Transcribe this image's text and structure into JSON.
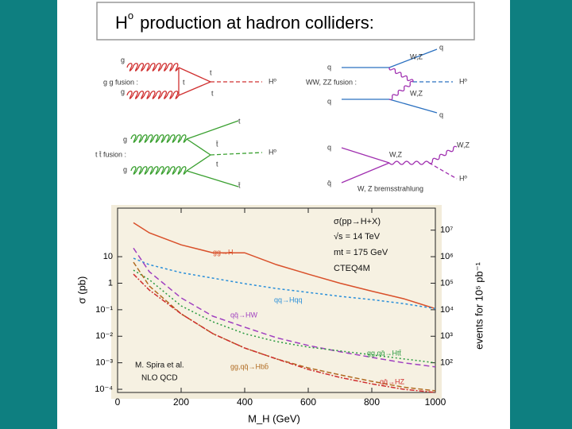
{
  "title_main": "H",
  "title_sup": "o",
  "title_rest": "production at hadron colliders:",
  "diagram_labels": [
    "g",
    "g",
    "g g fusion :",
    "t",
    "t",
    "t",
    "Hº",
    "q",
    "q",
    "q",
    "q",
    "W,Z",
    "W,Z",
    "Hº",
    "WW, ZZ fusion :",
    "g",
    "g",
    "t t̄ fusion :",
    "t",
    "t̄",
    "t",
    "t̄",
    "Hº",
    "q",
    "q̄",
    "W,Z",
    "W,Z",
    "Hº",
    "W, Z bremsstrahlung"
  ],
  "chart_data": {
    "type": "line",
    "log_scale": true,
    "x": [
      50,
      100,
      200,
      300,
      400,
      500,
      600,
      700,
      800,
      900,
      1000
    ],
    "xlim": [
      0,
      1000
    ],
    "xticks": [
      0,
      200,
      400,
      600,
      800,
      1000
    ],
    "ylim": [
      7.6e-05,
      676
    ],
    "yticks": [
      {
        "value": 0.0001,
        "label": "10⁻⁴"
      },
      {
        "value": 0.001,
        "label": "10⁻³"
      },
      {
        "value": 0.01,
        "label": "10⁻²"
      },
      {
        "value": 0.1,
        "label": "10⁻¹"
      },
      1,
      10
    ],
    "y2lim": [
      7.6,
      67600000
    ],
    "y2ticks": [
      {
        "value": 100,
        "label": "10²"
      },
      {
        "value": 1000,
        "label": "10³"
      },
      {
        "value": 10000,
        "label": "10⁴"
      },
      {
        "value": 100000,
        "label": "10⁵"
      },
      {
        "value": 1000000,
        "label": "10⁶"
      },
      {
        "value": 10000000,
        "label": "10⁷"
      }
    ],
    "xlabel": "M_H (GeV)",
    "ylabel": "σ (pb)",
    "y2label": "events for 10⁵ pb⁻¹",
    "annotations": [
      "σ(pp→H+X)",
      "√s = 14 TeV",
      "mt = 175 GeV",
      "CTEQ4M",
      "M. Spira et al.",
      "NLO  QCD"
    ],
    "series": [
      {
        "name": "gg→H",
        "color": "#d9502a",
        "dash": "none",
        "values": [
          190,
          79,
          28,
          14,
          14,
          5,
          2.2,
          1.0,
          0.5,
          0.26,
          0.11
        ]
      },
      {
        "name": "qq→Hqq",
        "color": "#2a8fd9",
        "dash": "3,3",
        "values": [
          8.7,
          5,
          2.5,
          1.55,
          0.96,
          0.63,
          0.45,
          0.32,
          0.24,
          0.17,
          0.11
        ]
      },
      {
        "name": "qq̄→HW",
        "color": "#a040c0",
        "dash": "7,4",
        "values": [
          21,
          2.7,
          0.28,
          0.057,
          0.022,
          0.0088,
          0.0045,
          0.0026,
          0.0016,
          0.001,
          0.0007
        ]
      },
      {
        "name": "gg,qq̄→Htt̄",
        "color": "#2a9a40",
        "dash": "2,3",
        "values": [
          3.1,
          1.35,
          0.14,
          0.035,
          0.0125,
          0.0063,
          0.0039,
          0.0028,
          0.002,
          0.0014,
          0.001
        ]
      },
      {
        "name": "gg,qq̄→Hbb̄",
        "color": "#b06a20",
        "dash": "6,3",
        "values": [
          6.2,
          0.78,
          0.07,
          0.0125,
          0.0036,
          0.0014,
          0.00064,
          0.00035,
          0.0002,
          0.00012,
          8.8e-05
        ]
      },
      {
        "name": "qq̄→HZ",
        "color": "#d03030",
        "dash": "6,2,2,2",
        "values": [
          2.2,
          0.55,
          0.07,
          0.0125,
          0.0036,
          0.0014,
          0.00056,
          0.00028,
          0.00016,
          0.0001,
          7.6e-05
        ]
      }
    ]
  }
}
